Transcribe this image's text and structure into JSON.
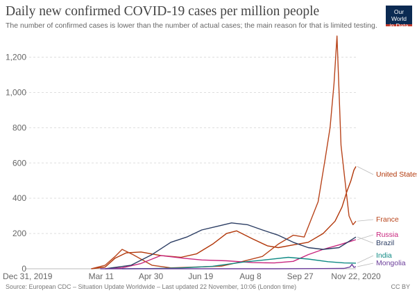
{
  "header": {
    "title": "Daily new confirmed COVID-19 cases per million people",
    "subtitle": "The number of confirmed cases is lower than the number of actual cases; the main reason for that is limited testing.",
    "logo_line1": "Our World",
    "logo_line2": "in Data"
  },
  "footer": {
    "source": "Source: European CDC – Situation Update Worldwide – Last updated 22 November, 10:06 (London time)",
    "license": "CC BY"
  },
  "chart_data": {
    "type": "line",
    "title": "Daily new confirmed COVID-19 cases per million people",
    "xlabel": "",
    "ylabel": "",
    "ylim": [
      0,
      1320
    ],
    "xlim": [
      "2019-12-31",
      "2020-11-22"
    ],
    "yticks": [
      0,
      200,
      400,
      600,
      800,
      1000,
      1200
    ],
    "ytick_labels": [
      "0",
      "200",
      "400",
      "600",
      "800",
      "1,000",
      "1,200"
    ],
    "xticks": [
      "2019-12-31",
      "2020-03-11",
      "2020-04-30",
      "2020-06-19",
      "2020-08-08",
      "2020-09-27",
      "2020-11-22"
    ],
    "xtick_labels": [
      "Dec 31, 2019",
      "Mar 11",
      "Apr 30",
      "Jun 19",
      "Aug 8",
      "Sep 27",
      "Nov 22, 2020"
    ],
    "grid": "horizontal dashed",
    "legend": "right (labels at line ends)",
    "series": [
      {
        "name": "United States",
        "color": "#b13507",
        "x": [
          "2020-03-01",
          "2020-03-15",
          "2020-03-25",
          "2020-04-05",
          "2020-04-20",
          "2020-05-10",
          "2020-05-30",
          "2020-06-15",
          "2020-07-01",
          "2020-07-15",
          "2020-07-25",
          "2020-08-10",
          "2020-08-25",
          "2020-09-05",
          "2020-09-20",
          "2020-10-05",
          "2020-10-20",
          "2020-11-01",
          "2020-11-08",
          "2020-11-13",
          "2020-11-17",
          "2020-11-20",
          "2020-11-22"
        ],
        "values": [
          0,
          10,
          60,
          90,
          95,
          75,
          65,
          85,
          140,
          200,
          215,
          170,
          130,
          120,
          135,
          150,
          200,
          270,
          350,
          440,
          500,
          560,
          580
        ]
      },
      {
        "name": "France",
        "color": "#b8441b",
        "x": [
          "2020-03-01",
          "2020-03-15",
          "2020-03-25",
          "2020-04-01",
          "2020-04-12",
          "2020-05-01",
          "2020-05-20",
          "2020-06-15",
          "2020-07-10",
          "2020-07-30",
          "2020-08-20",
          "2020-09-05",
          "2020-09-20",
          "2020-10-01",
          "2020-10-15",
          "2020-10-22",
          "2020-10-27",
          "2020-10-31",
          "2020-11-03",
          "2020-11-07",
          "2020-11-11",
          "2020-11-15",
          "2020-11-19",
          "2020-11-22"
        ],
        "values": [
          0,
          20,
          70,
          110,
          80,
          20,
          5,
          10,
          15,
          40,
          70,
          140,
          190,
          180,
          380,
          620,
          800,
          1050,
          1320,
          700,
          500,
          300,
          250,
          270
        ]
      },
      {
        "name": "Russia",
        "color": "#c8267e",
        "x": [
          "2020-03-15",
          "2020-04-01",
          "2020-04-20",
          "2020-05-10",
          "2020-06-01",
          "2020-06-20",
          "2020-07-15",
          "2020-08-10",
          "2020-09-01",
          "2020-09-20",
          "2020-10-05",
          "2020-10-20",
          "2020-11-05",
          "2020-11-22"
        ],
        "values": [
          0,
          5,
          30,
          75,
          60,
          50,
          45,
          35,
          33,
          42,
          80,
          110,
          135,
          165
        ]
      },
      {
        "name": "Brazil",
        "color": "#2b3d63",
        "x": [
          "2020-03-15",
          "2020-04-10",
          "2020-05-01",
          "2020-05-20",
          "2020-06-05",
          "2020-06-20",
          "2020-07-05",
          "2020-07-20",
          "2020-08-05",
          "2020-08-20",
          "2020-09-05",
          "2020-09-20",
          "2020-10-05",
          "2020-10-20",
          "2020-11-05",
          "2020-11-22"
        ],
        "values": [
          0,
          20,
          80,
          150,
          180,
          220,
          240,
          260,
          250,
          220,
          190,
          150,
          120,
          110,
          120,
          180
        ]
      },
      {
        "name": "India",
        "color": "#0f8a84",
        "x": [
          "2020-04-01",
          "2020-05-01",
          "2020-06-01",
          "2020-07-01",
          "2020-08-01",
          "2020-08-25",
          "2020-09-15",
          "2020-10-05",
          "2020-10-25",
          "2020-11-10",
          "2020-11-22"
        ],
        "values": [
          0,
          1,
          5,
          14,
          38,
          52,
          65,
          55,
          40,
          33,
          32
        ]
      },
      {
        "name": "Mongolia",
        "color": "#6b3d9a",
        "x": [
          "2020-03-10",
          "2020-05-01",
          "2020-07-01",
          "2020-09-01",
          "2020-10-20",
          "2020-11-10",
          "2020-11-16",
          "2020-11-18",
          "2020-11-20",
          "2020-11-22"
        ],
        "values": [
          0,
          0,
          0,
          0,
          1,
          2,
          10,
          25,
          8,
          12
        ]
      }
    ]
  }
}
